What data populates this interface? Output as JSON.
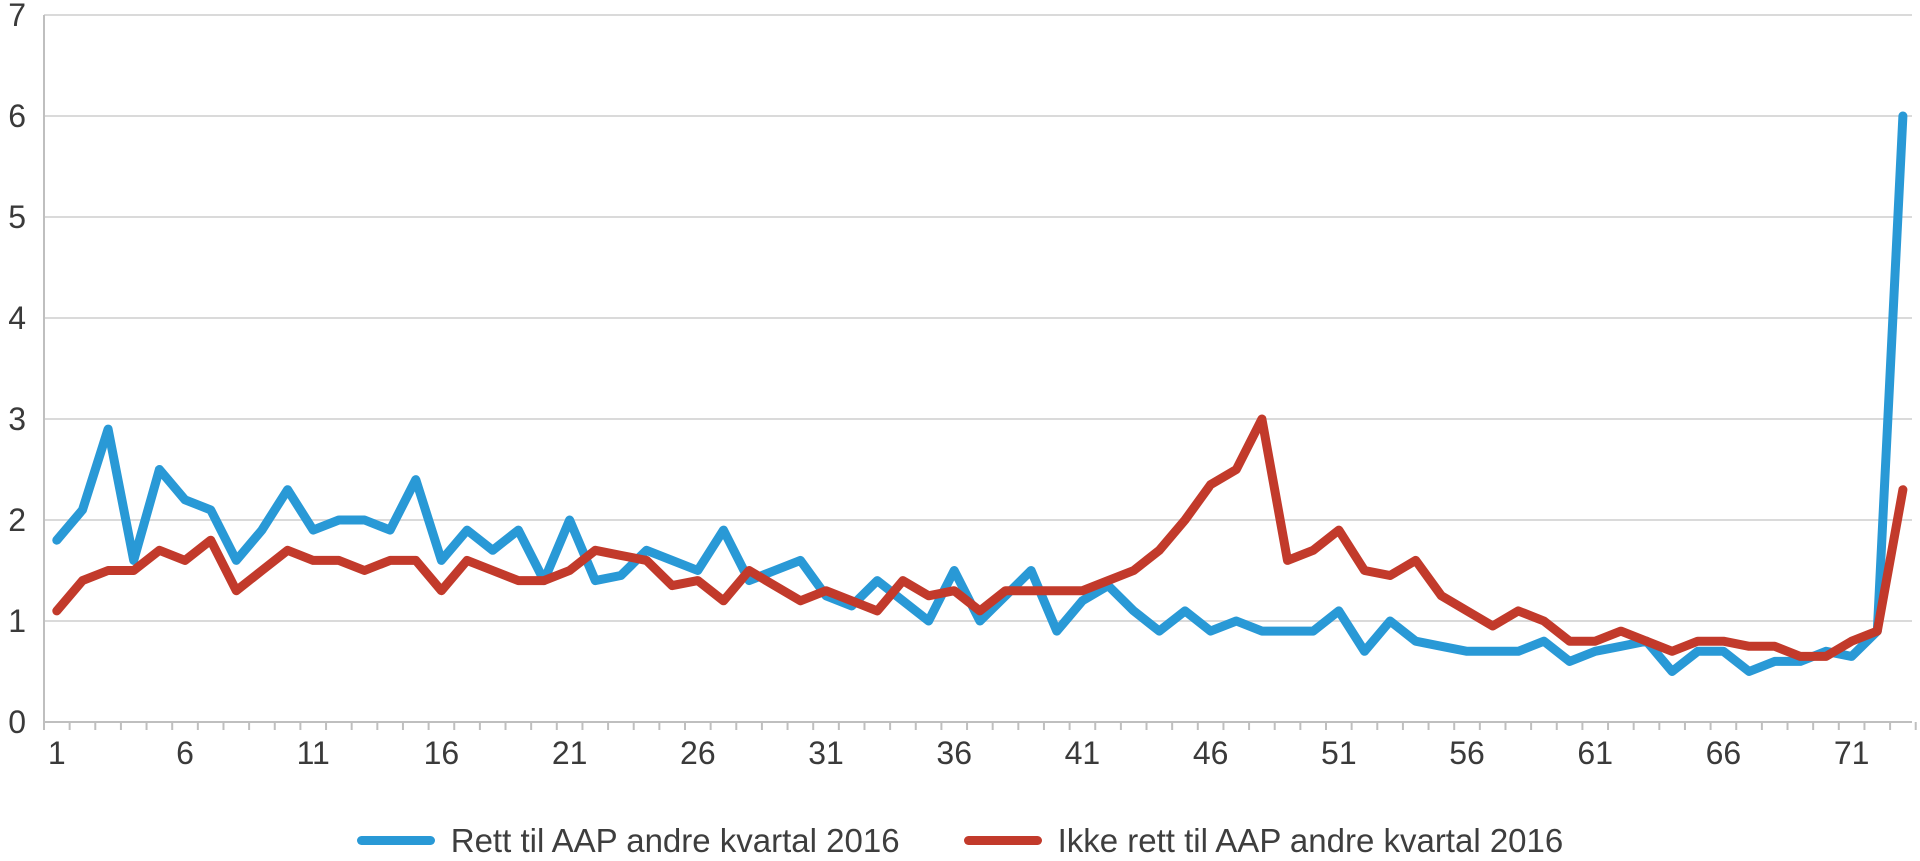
{
  "chart_data": {
    "type": "line",
    "title": "",
    "xlabel": "",
    "ylabel": "",
    "xlim": [
      1,
      73
    ],
    "ylim": [
      0,
      7
    ],
    "grid": "horizontal",
    "legend_position": "bottom",
    "y_ticks": [
      0,
      1,
      2,
      3,
      4,
      5,
      6,
      7
    ],
    "x_tick_positions": [
      1,
      6,
      11,
      16,
      21,
      26,
      31,
      36,
      41,
      46,
      51,
      56,
      61,
      66,
      71
    ],
    "x_tick_labels": [
      "1",
      "6",
      "11",
      "16",
      "21",
      "26",
      "31",
      "36",
      "41",
      "46",
      "51",
      "56",
      "61",
      "66",
      "71"
    ],
    "categories": [
      1,
      2,
      3,
      4,
      5,
      6,
      7,
      8,
      9,
      10,
      11,
      12,
      13,
      14,
      15,
      16,
      17,
      18,
      19,
      20,
      21,
      22,
      23,
      24,
      25,
      26,
      27,
      28,
      29,
      30,
      31,
      32,
      33,
      34,
      35,
      36,
      37,
      38,
      39,
      40,
      41,
      42,
      43,
      44,
      45,
      46,
      47,
      48,
      49,
      50,
      51,
      52,
      53,
      54,
      55,
      56,
      57,
      58,
      59,
      60,
      61,
      62,
      63,
      64,
      65,
      66,
      67,
      68,
      69,
      70,
      71,
      72,
      73
    ],
    "series": [
      {
        "name": "Rett til AAP andre kvartal 2016",
        "color": "#2999d6",
        "values": [
          1.8,
          2.1,
          2.9,
          1.6,
          2.5,
          2.2,
          2.1,
          1.6,
          1.9,
          2.3,
          1.9,
          2.0,
          2.0,
          1.9,
          2.4,
          1.6,
          1.9,
          1.7,
          1.9,
          1.4,
          2.0,
          1.4,
          1.45,
          1.7,
          1.6,
          1.5,
          1.9,
          1.4,
          1.5,
          1.6,
          1.25,
          1.15,
          1.4,
          1.2,
          1.0,
          1.5,
          1.0,
          1.25,
          1.5,
          0.9,
          1.2,
          1.35,
          1.1,
          0.9,
          1.1,
          0.9,
          1.0,
          0.9,
          0.9,
          0.9,
          1.1,
          0.7,
          1.0,
          0.8,
          0.75,
          0.7,
          0.7,
          0.7,
          0.8,
          0.6,
          0.7,
          0.75,
          0.8,
          0.5,
          0.7,
          0.7,
          0.5,
          0.6,
          0.6,
          0.7,
          0.65,
          0.9,
          6.0
        ]
      },
      {
        "name": "Ikke rett til AAP andre kvartal 2016",
        "color": "#c23a2b",
        "values": [
          1.1,
          1.4,
          1.5,
          1.5,
          1.7,
          1.6,
          1.8,
          1.3,
          1.5,
          1.7,
          1.6,
          1.6,
          1.5,
          1.6,
          1.6,
          1.3,
          1.6,
          1.5,
          1.4,
          1.4,
          1.5,
          1.7,
          1.65,
          1.6,
          1.35,
          1.4,
          1.2,
          1.5,
          1.35,
          1.2,
          1.3,
          1.2,
          1.1,
          1.4,
          1.25,
          1.3,
          1.1,
          1.3,
          1.3,
          1.3,
          1.3,
          1.4,
          1.5,
          1.7,
          2.0,
          2.35,
          2.5,
          3.0,
          1.6,
          1.7,
          1.9,
          1.5,
          1.45,
          1.6,
          1.25,
          1.1,
          0.95,
          1.1,
          1.0,
          0.8,
          0.8,
          0.9,
          0.8,
          0.7,
          0.8,
          0.8,
          0.75,
          0.75,
          0.65,
          0.65,
          0.8,
          0.9,
          2.3
        ]
      }
    ],
    "style": {
      "gridline_color": "#dadada",
      "axis_line_color": "#bfbfbf",
      "tick_color": "#bfbfbf",
      "tick_label_color": "#3a3a3a",
      "background_color": "#ffffff",
      "line_width": 9
    }
  },
  "legend": {
    "items": [
      {
        "label": "Rett til AAP andre kvartal 2016",
        "color": "#2999d6"
      },
      {
        "label": "Ikke rett til AAP andre kvartal 2016",
        "color": "#c23a2b"
      }
    ]
  }
}
